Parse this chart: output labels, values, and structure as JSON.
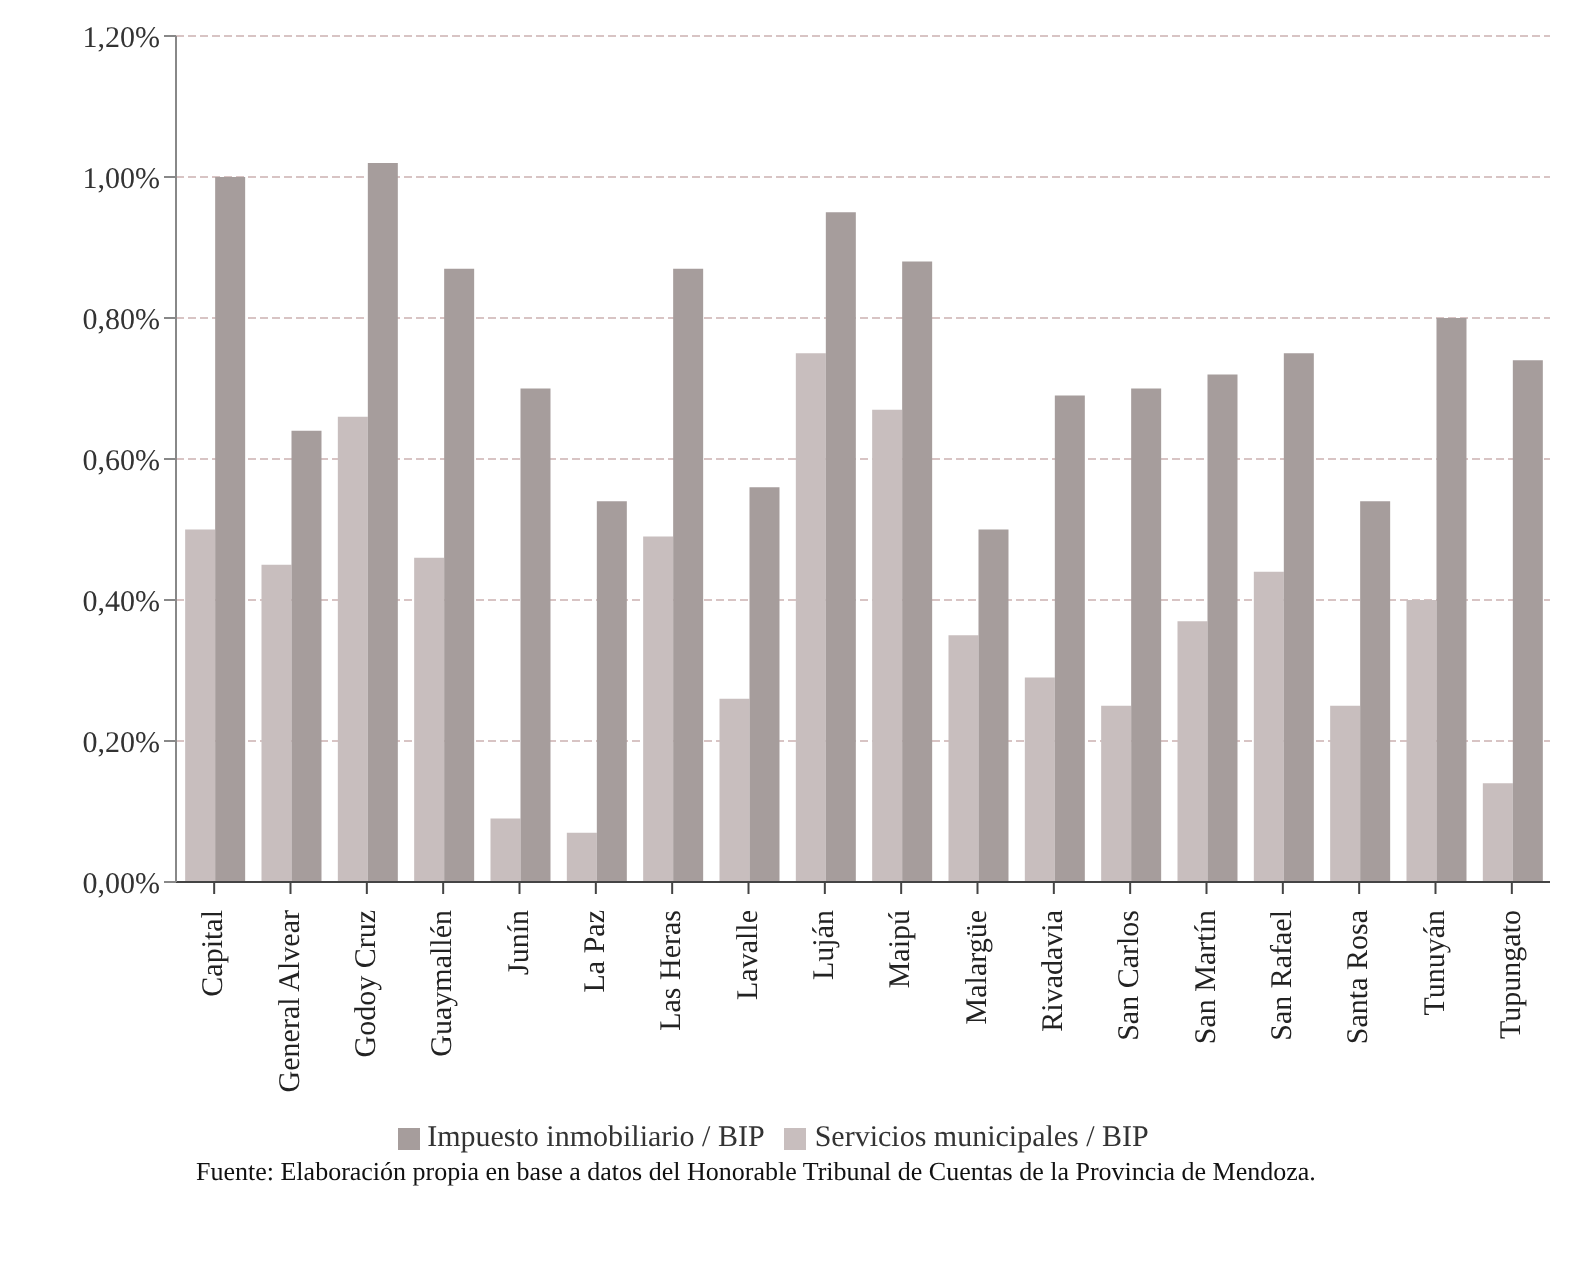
{
  "chart_data": {
    "type": "bar",
    "categories": [
      "Capital",
      "General Alvear",
      "Godoy Cruz",
      "Guaymallén",
      "Junín",
      "La Paz",
      "Las Heras",
      "Lavalle",
      "Luján",
      "Maipú",
      "Malargüe",
      "Rivadavia",
      "San Carlos",
      "San Martín",
      "San Rafael",
      "Santa Rosa",
      "Tunuyán",
      "Tupungato"
    ],
    "series": [
      {
        "name": "Servicios municipales / BIP",
        "color": "#c8bebe",
        "values": [
          0.5,
          0.45,
          0.66,
          0.46,
          0.09,
          0.07,
          0.49,
          0.26,
          0.75,
          0.67,
          0.35,
          0.29,
          0.25,
          0.37,
          0.44,
          0.25,
          0.4,
          0.14
        ]
      },
      {
        "name": "Impuesto inmobiliario / BIP",
        "color": "#a69d9c",
        "values": [
          1.0,
          0.64,
          1.02,
          0.87,
          0.7,
          0.54,
          0.87,
          0.56,
          0.95,
          0.88,
          0.5,
          0.69,
          0.7,
          0.72,
          0.75,
          0.54,
          0.8,
          0.74
        ]
      }
    ],
    "ylim": [
      0,
      1.2
    ],
    "yticks": [
      {
        "value": 0,
        "label": "0,00%"
      },
      {
        "value": 0.2,
        "label": "0,20%"
      },
      {
        "value": 0.4,
        "label": "0,40%"
      },
      {
        "value": 0.6,
        "label": "0,60%"
      },
      {
        "value": 0.8,
        "label": "0,80%"
      },
      {
        "value": 1,
        "label": "1,00%"
      },
      {
        "value": 1.2,
        "label": "1,20%"
      }
    ],
    "grid": "y",
    "legend": "bottom",
    "annotations": [
      "Fuente: Elaboración propia en base a datos del Honorable Tribunal de Cuentas de la Provincia de Mendoza."
    ]
  }
}
